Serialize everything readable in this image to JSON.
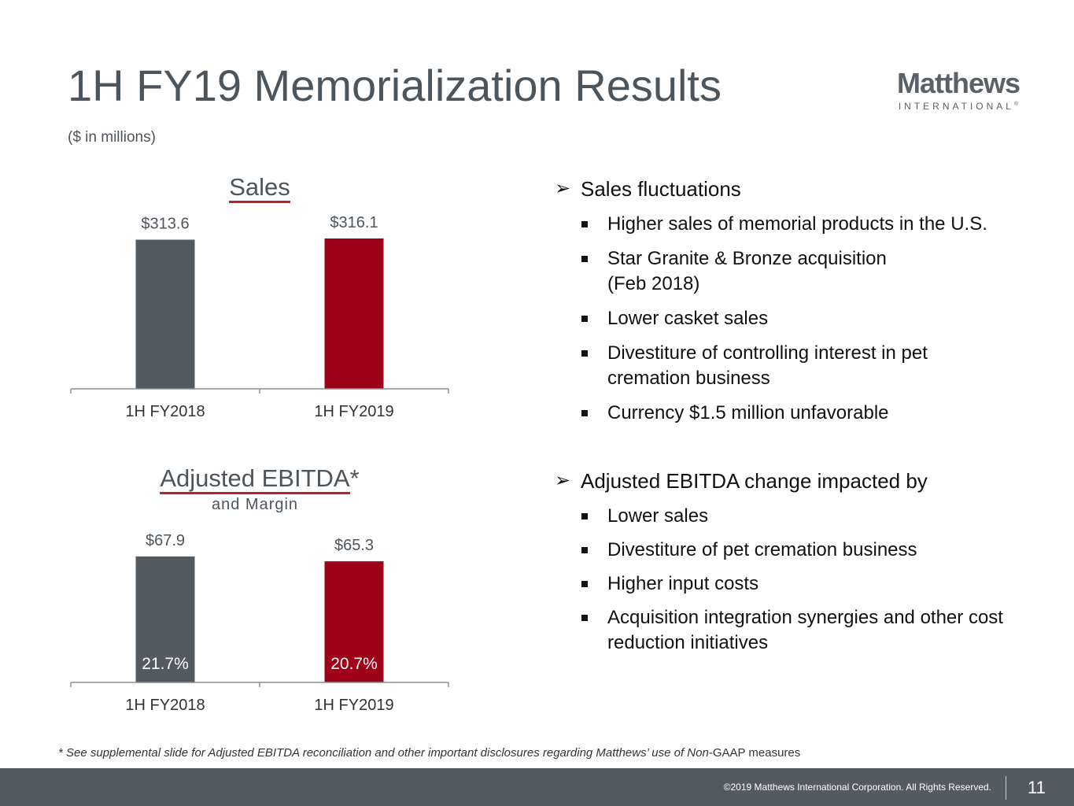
{
  "title": "1H FY19 Memorialization Results",
  "subtitle": "($ in millions)",
  "logo": {
    "main": "Matthews",
    "sub": "INTERNATIONAL",
    "mark": "®"
  },
  "chart_data": [
    {
      "type": "bar",
      "title": "Sales",
      "categories": [
        "1H FY2018",
        "1H FY2019"
      ],
      "values": [
        313.6,
        316.1
      ],
      "value_labels": [
        "$313.6",
        "$316.1"
      ],
      "colors": [
        "#535b62",
        "#9e0019"
      ],
      "ylim": [
        0,
        316.1
      ],
      "xlabel": "",
      "ylabel": ""
    },
    {
      "type": "bar",
      "title": "Adjusted EBITDA",
      "title_suffix": "*",
      "subtitle": "and Margin",
      "categories": [
        "1H FY2018",
        "1H FY2019"
      ],
      "values": [
        67.9,
        65.3
      ],
      "value_labels": [
        "$67.9",
        "$65.3"
      ],
      "margins": [
        "21.7%",
        "20.7%"
      ],
      "colors": [
        "#535b62",
        "#9e0019"
      ],
      "ylim": [
        0,
        67.9
      ],
      "xlabel": "",
      "ylabel": ""
    }
  ],
  "bullets": [
    {
      "heading": "Sales fluctuations",
      "items": [
        "Higher sales of memorial products in the U.S.",
        "Star Granite & Bronze acquisition (Feb 2018)",
        "Lower casket sales",
        "Divestiture of controlling interest in pet cremation business",
        "Currency $1.5 million unfavorable"
      ]
    },
    {
      "heading": "Adjusted EBITDA change impacted by",
      "items": [
        "Lower sales",
        "Divestiture of pet cremation business",
        "Higher input costs",
        "Acquisition integration synergies and other cost reduction initiatives"
      ]
    }
  ],
  "footnote": {
    "italic": "* See supplemental slide for Adjusted EBITDA reconciliation and other important disclosures regarding Matthews’ use of Non",
    "regular": "-GAAP measures"
  },
  "footer": {
    "copyright": "©2019 Matthews International Corporation. All Rights Reserved.",
    "page": "11"
  }
}
